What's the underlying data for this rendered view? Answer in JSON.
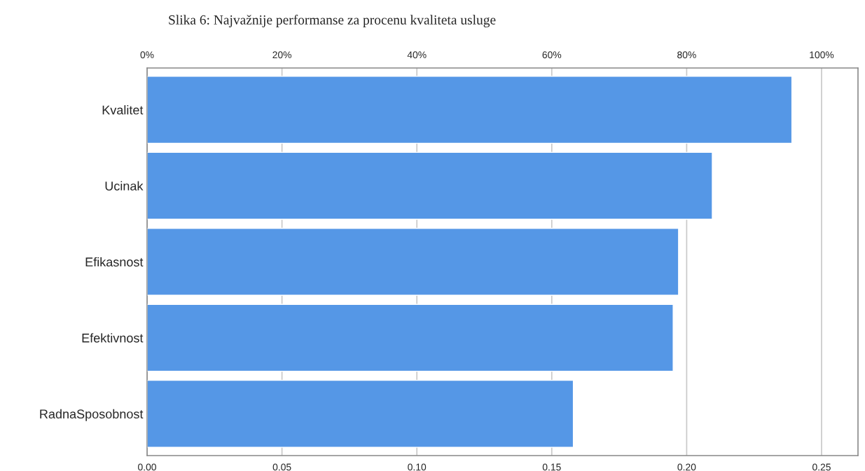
{
  "chart_data": {
    "type": "bar",
    "orientation": "horizontal",
    "title": "Slika 6: Najvažnije performanse za procenu kvaliteta usluge",
    "categories": [
      "Kvalitet",
      "Ucinak",
      "Efikasnost",
      "Efektivnost",
      "RadnaSposobnost"
    ],
    "values": [
      0.239,
      0.2095,
      0.197,
      0.195,
      0.158
    ],
    "color": "#5597e6",
    "xlim": [
      0,
      0.2635
    ],
    "xticks": [
      {
        "value": 0,
        "label": "0.00"
      },
      {
        "value": 0.05,
        "label": "0.05"
      },
      {
        "value": 0.1,
        "label": "0.10"
      },
      {
        "value": 0.15,
        "label": "0.15"
      },
      {
        "value": 0.2,
        "label": "0.20"
      },
      {
        "value": 0.25,
        "label": "0.25"
      }
    ],
    "x2lim": [
      0,
      105.4
    ],
    "x2ticks": [
      {
        "value": 0,
        "label": "0%"
      },
      {
        "value": 20,
        "label": "20%"
      },
      {
        "value": 40,
        "label": "40%"
      },
      {
        "value": 60,
        "label": "60%"
      },
      {
        "value": 80,
        "label": "80%"
      },
      {
        "value": 100,
        "label": "100%"
      }
    ],
    "grid": "x"
  }
}
